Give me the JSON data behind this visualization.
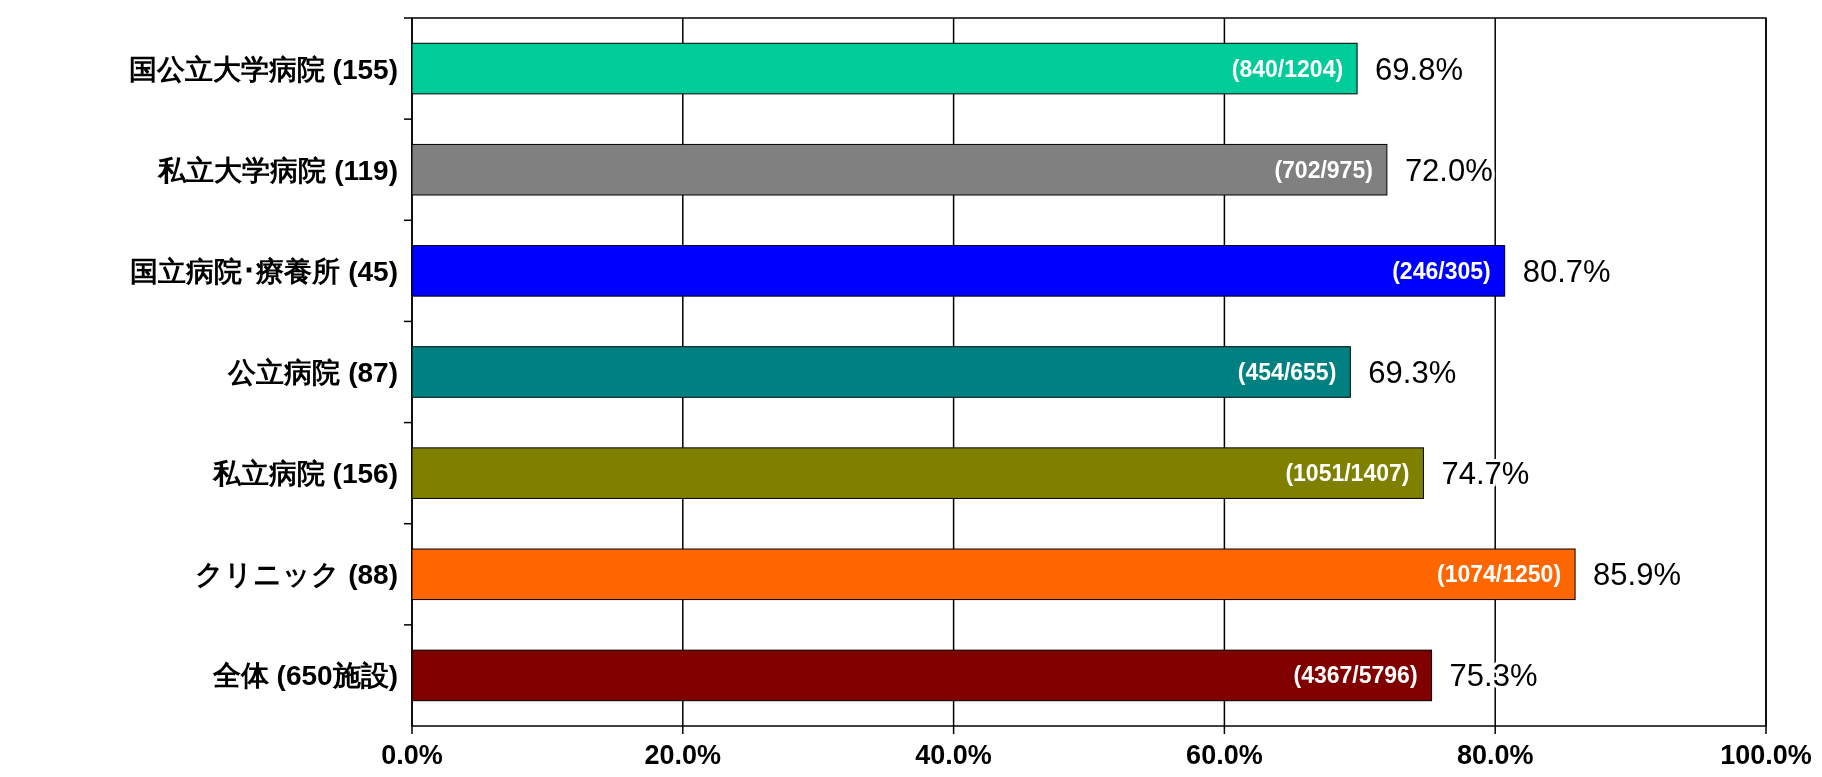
{
  "chart_data": {
    "type": "bar",
    "orientation": "horizontal",
    "categories": [
      "国公立大学病院 (155)",
      "私立大学病院 (119)",
      "国立病院･療養所 (45)",
      "公立病院 (87)",
      "私立病院 (156)",
      "クリニック (88)",
      "全体 (650施設)"
    ],
    "values": [
      69.8,
      72.0,
      80.7,
      69.3,
      74.7,
      85.9,
      75.3
    ],
    "colors": [
      "#00cc99",
      "#808080",
      "#0000ff",
      "#008080",
      "#808000",
      "#ff6600",
      "#800000"
    ],
    "value_labels": [
      "69.8%",
      "72.0%",
      "80.7%",
      "69.3%",
      "74.7%",
      "85.9%",
      "75.3%"
    ],
    "annotations": [
      {
        "text": "(840/1204)",
        "x": 69.8,
        "y": "国公立大学病院 (155)"
      },
      {
        "text": "(702/975)",
        "x": 72.0,
        "y": "私立大学病院 (119)"
      },
      {
        "text": "(246/305)",
        "x": 80.7,
        "y": "国立病院･療養所 (45)"
      },
      {
        "text": "(454/655)",
        "x": 69.3,
        "y": "公立病院 (87)"
      },
      {
        "text": "(1051/1407)",
        "x": 74.7,
        "y": "私立病院 (156)"
      },
      {
        "text": "(1074/1250)",
        "x": 85.9,
        "y": "クリニック (88)"
      },
      {
        "text": "(4367/5796)",
        "x": 75.3,
        "y": "全体 (650施設)"
      }
    ],
    "xlim": [
      0,
      100
    ],
    "xticks": [
      {
        "value": 0,
        "label": "0.0%"
      },
      {
        "value": 20,
        "label": "20.0%"
      },
      {
        "value": 40,
        "label": "40.0%"
      },
      {
        "value": 60,
        "label": "60.0%"
      },
      {
        "value": 80,
        "label": "80.0%"
      },
      {
        "value": 100,
        "label": "100.0%"
      }
    ],
    "grid": "x"
  }
}
